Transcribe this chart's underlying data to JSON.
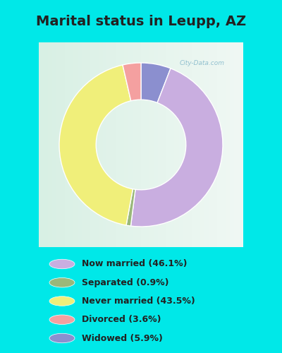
{
  "title": "Marital status in Leupp, AZ",
  "slices_ordered": [
    5.9,
    46.1,
    0.9,
    43.5,
    3.6
  ],
  "colors_ordered": [
    "#8b8fcf",
    "#c9aee0",
    "#9ab87a",
    "#f0ef7a",
    "#f4a0a0"
  ],
  "legend_labels": [
    "Now married (46.1%)",
    "Separated (0.9%)",
    "Never married (43.5%)",
    "Divorced (3.6%)",
    "Widowed (5.9%)"
  ],
  "legend_colors": [
    "#c9aee0",
    "#9ab87a",
    "#f0ef7a",
    "#f4a0a0",
    "#8b8fcf"
  ],
  "cyan_bg": "#00e8e8",
  "chart_bg": "#e8f5ee",
  "title_color": "#222222",
  "title_fontsize": 14,
  "watermark": "City-Data.com",
  "donut_width": 0.45,
  "figsize": [
    4.0,
    5.0
  ],
  "dpi": 100
}
